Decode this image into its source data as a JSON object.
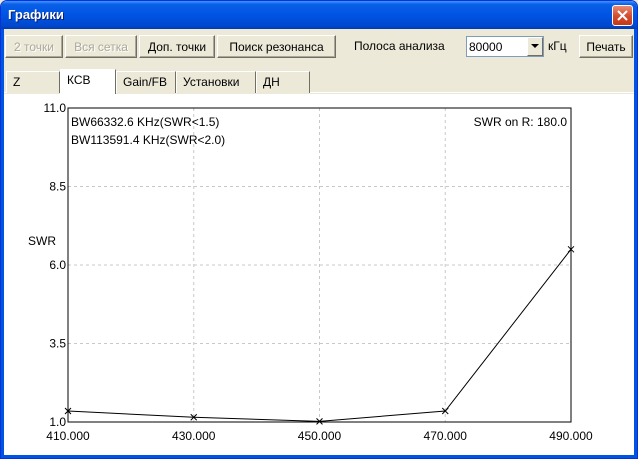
{
  "window": {
    "title": "Графики"
  },
  "toolbar": {
    "btn_2pts": "2 точки",
    "btn_grid": "Вся сетка",
    "btn_extra": "Доп. точки",
    "btn_resonance": "Поиск резонанса",
    "band_label": "Полоса анализа",
    "band_value": "80000",
    "band_unit": "кГц",
    "btn_print": "Печать"
  },
  "tabs": [
    {
      "label": "Z",
      "active": false
    },
    {
      "label": "КСВ",
      "active": true
    },
    {
      "label": "Gain/FB",
      "active": false
    },
    {
      "label": "Установки",
      "active": false
    },
    {
      "label": "ДН",
      "active": false
    }
  ],
  "chart_data": {
    "type": "line",
    "ylabel": "SWR",
    "xlabel": "",
    "xlim": [
      410,
      490
    ],
    "ylim": [
      1.0,
      11.0
    ],
    "x_ticks": [
      "410.000",
      "430.000",
      "450.000",
      "470.000",
      "490.000"
    ],
    "x_tick_values": [
      410,
      430,
      450,
      470,
      490
    ],
    "y_ticks": [
      "11.0",
      "8.5",
      "6.0",
      "3.5",
      "1.0"
    ],
    "y_tick_values": [
      11.0,
      8.5,
      6.0,
      3.5,
      1.0
    ],
    "grid": true,
    "annotations": {
      "bw1": "BW66332.6 KHz(SWR<1.5)",
      "bw2": "BW113591.4 KHz(SWR<2.0)",
      "swr_ref": "SWR on R: 180.0"
    },
    "series": [
      {
        "x": [
          410,
          430,
          450,
          470,
          490
        ],
        "y": [
          1.35,
          1.15,
          1.02,
          1.35,
          6.5
        ]
      }
    ]
  }
}
